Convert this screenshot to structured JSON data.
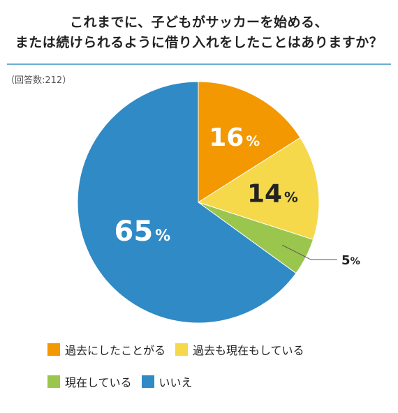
{
  "title": {
    "line1": "これまでに、子どもがサッカーを始める、",
    "line2": "または続けられるように借り入れをしたことはありますか？"
  },
  "respondents": "（回答数:212）",
  "colors": {
    "past_only": "#f39800",
    "past_and_now": "#f5d94a",
    "now_only": "#9bc64e",
    "no": "#2f8ac6",
    "rule": "#6aaed6"
  },
  "chart_data": {
    "type": "pie",
    "title": "これまでに、子どもがサッカーを始める、または続けられるように借り入れをしたことはありますか？",
    "categories": [
      "過去にしたことがある",
      "過去も現在もしている",
      "現在している",
      "いいえ"
    ],
    "values": [
      16,
      14,
      5,
      65
    ],
    "value_labels": [
      "16",
      "14",
      "5",
      "65"
    ],
    "unit": "%",
    "legend_placement": "bottom"
  },
  "legend": [
    {
      "label": "過去にしたことがる",
      "color_key": "past_only"
    },
    {
      "label": "過去も現在もしている",
      "color_key": "past_and_now"
    },
    {
      "label": "現在している",
      "color_key": "now_only"
    },
    {
      "label": "いいえ",
      "color_key": "no"
    }
  ]
}
